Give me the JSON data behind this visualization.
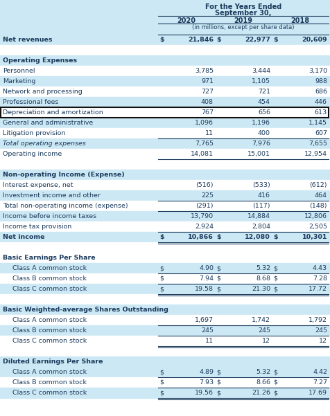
{
  "title_line1": "For the Years Ended",
  "title_line2": "September 30,",
  "col_headers": [
    "2020",
    "2019",
    "2018"
  ],
  "sub_header": "(in millions, except per share data)",
  "blue_bg": "#cce8f4",
  "white_bg": "#ffffff",
  "text_color": "#1a3a5c",
  "rows": [
    {
      "label": "Net revenues",
      "vals": [
        "$",
        "21,846",
        "$",
        "22,977",
        "$",
        "20,609"
      ],
      "style": "bold",
      "bg": "blue",
      "top_line": true,
      "bottom_line": false,
      "indent": 0
    },
    {
      "label": "",
      "vals": [
        "",
        "",
        "",
        "",
        "",
        ""
      ],
      "style": "normal",
      "bg": "white",
      "top_line": false,
      "bottom_line": false,
      "indent": 0
    },
    {
      "label": "Operating Expenses",
      "vals": [
        "",
        "",
        "",
        "",
        "",
        ""
      ],
      "style": "bold",
      "bg": "blue",
      "top_line": false,
      "bottom_line": false,
      "indent": 0
    },
    {
      "label": "Personnel",
      "vals": [
        "",
        "3,785",
        "",
        "3,444",
        "",
        "3,170"
      ],
      "style": "normal",
      "bg": "white",
      "top_line": false,
      "bottom_line": false,
      "indent": 0
    },
    {
      "label": "Marketing",
      "vals": [
        "",
        "971",
        "",
        "1,105",
        "",
        "988"
      ],
      "style": "normal",
      "bg": "blue",
      "top_line": false,
      "bottom_line": false,
      "indent": 0
    },
    {
      "label": "Network and processing",
      "vals": [
        "",
        "727",
        "",
        "721",
        "",
        "686"
      ],
      "style": "normal",
      "bg": "white",
      "top_line": false,
      "bottom_line": false,
      "indent": 0
    },
    {
      "label": "Professional fees",
      "vals": [
        "",
        "408",
        "",
        "454",
        "",
        "446"
      ],
      "style": "normal",
      "bg": "blue",
      "top_line": false,
      "bottom_line": false,
      "indent": 0
    },
    {
      "label": "Depreciation and amortization",
      "vals": [
        "",
        "767",
        "",
        "656",
        "",
        "613"
      ],
      "style": "normal",
      "bg": "white",
      "top_line": false,
      "bottom_line": false,
      "indent": 0,
      "highlight_box": true
    },
    {
      "label": "General and administrative",
      "vals": [
        "",
        "1,096",
        "",
        "1,196",
        "",
        "1,145"
      ],
      "style": "normal",
      "bg": "blue",
      "top_line": false,
      "bottom_line": false,
      "indent": 0
    },
    {
      "label": "Litigation provision",
      "vals": [
        "",
        "11",
        "",
        "400",
        "",
        "607"
      ],
      "style": "normal",
      "bg": "white",
      "top_line": false,
      "bottom_line": false,
      "indent": 0
    },
    {
      "label": "Total operating expenses",
      "vals": [
        "",
        "7,765",
        "",
        "7,976",
        "",
        "7,655"
      ],
      "style": "italic",
      "bg": "blue",
      "top_line": true,
      "bottom_line": false,
      "indent": 0
    },
    {
      "label": "Operating income",
      "vals": [
        "",
        "14,081",
        "",
        "15,001",
        "",
        "12,954"
      ],
      "style": "normal",
      "bg": "white",
      "top_line": false,
      "bottom_line": true,
      "indent": 0
    },
    {
      "label": "",
      "vals": [
        "",
        "",
        "",
        "",
        "",
        ""
      ],
      "style": "normal",
      "bg": "white",
      "top_line": false,
      "bottom_line": false,
      "indent": 0
    },
    {
      "label": "Non-operating Income (Expense)",
      "vals": [
        "",
        "",
        "",
        "",
        "",
        ""
      ],
      "style": "bold",
      "bg": "blue",
      "top_line": false,
      "bottom_line": false,
      "indent": 0
    },
    {
      "label": "Interest expense, net",
      "vals": [
        "",
        "(516)",
        "",
        "(533)",
        "",
        "(612)"
      ],
      "style": "normal",
      "bg": "white",
      "top_line": false,
      "bottom_line": false,
      "indent": 0
    },
    {
      "label": "Investment income and other",
      "vals": [
        "",
        "225",
        "",
        "416",
        "",
        "464"
      ],
      "style": "normal",
      "bg": "blue",
      "top_line": false,
      "bottom_line": false,
      "indent": 0
    },
    {
      "label": "Total non-operating income (expense)",
      "vals": [
        "",
        "(291)",
        "",
        "(117)",
        "",
        "(148)"
      ],
      "style": "normal",
      "bg": "white",
      "top_line": true,
      "bottom_line": true,
      "indent": 0
    },
    {
      "label": "Income before income taxes",
      "vals": [
        "",
        "13,790",
        "",
        "14,884",
        "",
        "12,806"
      ],
      "style": "normal",
      "bg": "blue",
      "top_line": false,
      "bottom_line": false,
      "indent": 0
    },
    {
      "label": "Income tax provision",
      "vals": [
        "",
        "2,924",
        "",
        "2,804",
        "",
        "2,505"
      ],
      "style": "normal",
      "bg": "white",
      "top_line": false,
      "bottom_line": false,
      "indent": 0
    },
    {
      "label": "Net income",
      "vals": [
        "$",
        "10,866",
        "$",
        "12,080",
        "$",
        "10,301"
      ],
      "style": "bold",
      "bg": "blue",
      "top_line": true,
      "bottom_line": true,
      "double_line": true,
      "indent": 0
    },
    {
      "label": "",
      "vals": [
        "",
        "",
        "",
        "",
        "",
        ""
      ],
      "style": "normal",
      "bg": "white",
      "top_line": false,
      "bottom_line": false,
      "indent": 0
    },
    {
      "label": "Basic Earnings Per Share",
      "vals": [
        "",
        "",
        "",
        "",
        "",
        ""
      ],
      "style": "bold",
      "bg": "white",
      "top_line": false,
      "bottom_line": false,
      "indent": 0
    },
    {
      "label": "Class A common stock",
      "vals": [
        "$",
        "4.90",
        "$",
        "5.32",
        "$",
        "4.43"
      ],
      "style": "normal",
      "bg": "blue",
      "top_line": false,
      "bottom_line": true,
      "indent": 1
    },
    {
      "label": "Class B common stock",
      "vals": [
        "$",
        "7.94",
        "$",
        "8.68",
        "$",
        "7.28"
      ],
      "style": "normal",
      "bg": "white",
      "top_line": false,
      "bottom_line": true,
      "indent": 1
    },
    {
      "label": "Class C common stock",
      "vals": [
        "$",
        "19.58",
        "$",
        "21.30",
        "$",
        "17.72"
      ],
      "style": "normal",
      "bg": "blue",
      "top_line": false,
      "bottom_line": true,
      "double_line": true,
      "indent": 1
    },
    {
      "label": "",
      "vals": [
        "",
        "",
        "",
        "",
        "",
        ""
      ],
      "style": "normal",
      "bg": "white",
      "top_line": false,
      "bottom_line": false,
      "indent": 0
    },
    {
      "label": "Basic Weighted-average Shares Outstanding",
      "vals": [
        "",
        "",
        "",
        "",
        "",
        ""
      ],
      "style": "bold",
      "bg": "blue",
      "top_line": false,
      "bottom_line": false,
      "indent": 0
    },
    {
      "label": "Class A common stock",
      "vals": [
        "",
        "1,697",
        "",
        "1,742",
        "",
        "1,792"
      ],
      "style": "normal",
      "bg": "white",
      "top_line": false,
      "bottom_line": true,
      "indent": 1
    },
    {
      "label": "Class B common stock",
      "vals": [
        "",
        "245",
        "",
        "245",
        "",
        "245"
      ],
      "style": "normal",
      "bg": "blue",
      "top_line": false,
      "bottom_line": true,
      "indent": 1
    },
    {
      "label": "Class C common stock",
      "vals": [
        "",
        "11",
        "",
        "12",
        "",
        "12"
      ],
      "style": "normal",
      "bg": "white",
      "top_line": false,
      "bottom_line": true,
      "double_line": true,
      "indent": 1
    },
    {
      "label": "",
      "vals": [
        "",
        "",
        "",
        "",
        "",
        ""
      ],
      "style": "normal",
      "bg": "white",
      "top_line": false,
      "bottom_line": false,
      "indent": 0
    },
    {
      "label": "Diluted Earnings Per Share",
      "vals": [
        "",
        "",
        "",
        "",
        "",
        ""
      ],
      "style": "bold",
      "bg": "blue",
      "top_line": false,
      "bottom_line": false,
      "indent": 0
    },
    {
      "label": "Class A common stock",
      "vals": [
        "$",
        "4.89",
        "$",
        "5.32",
        "$",
        "4.42"
      ],
      "style": "normal",
      "bg": "blue",
      "top_line": false,
      "bottom_line": true,
      "indent": 1
    },
    {
      "label": "Class B common stock",
      "vals": [
        "$",
        "7.93",
        "$",
        "8.66",
        "$",
        "7.27"
      ],
      "style": "normal",
      "bg": "white",
      "top_line": false,
      "bottom_line": true,
      "indent": 1
    },
    {
      "label": "Class C common stock",
      "vals": [
        "$",
        "19.56",
        "$",
        "21.26",
        "$",
        "17.69"
      ],
      "style": "normal",
      "bg": "blue",
      "top_line": false,
      "bottom_line": true,
      "double_line": true,
      "indent": 1
    }
  ]
}
